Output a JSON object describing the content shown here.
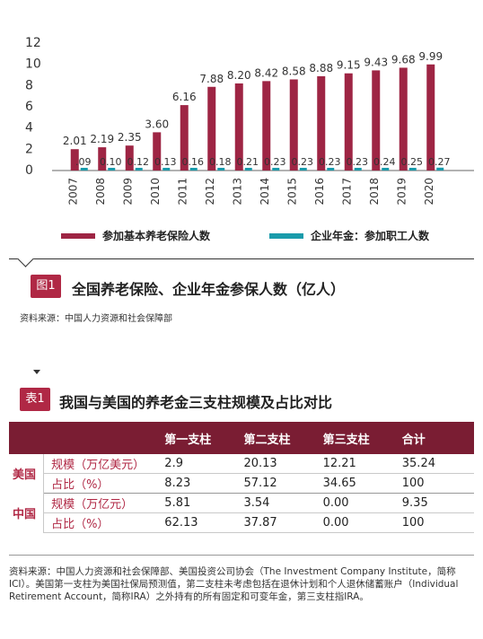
{
  "chart_data": {
    "type": "bar",
    "categories": [
      "2007",
      "2008",
      "2009",
      "2010",
      "2011",
      "2012",
      "2013",
      "2014",
      "2015",
      "2016",
      "2017",
      "2018",
      "2019",
      "2020"
    ],
    "series": [
      {
        "name": "参加基本养老保险人数",
        "values": [
          2.01,
          2.19,
          2.35,
          3.6,
          6.16,
          7.88,
          8.2,
          8.42,
          8.58,
          8.88,
          9.15,
          9.43,
          9.68,
          9.99
        ],
        "labels": [
          "2.01",
          "2.19",
          "2.35",
          "3.60",
          "6.16",
          "7.88",
          "8.20",
          "8.42",
          "8.58",
          "8.88",
          "9.15",
          "9.43",
          "9.68",
          "9.99"
        ],
        "color": "#9e2544"
      },
      {
        "name": "企业年金：参加职工人数",
        "values": [
          0.09,
          0.1,
          0.12,
          0.13,
          0.16,
          0.18,
          0.21,
          0.23,
          0.23,
          0.23,
          0.23,
          0.24,
          0.25,
          0.27
        ],
        "labels": [
          ".09",
          "0.10",
          "0.12",
          "0.13",
          "0.16",
          "0.18",
          "0.21",
          "0.23",
          "0.23",
          "0.23",
          "0.23",
          "0.24",
          "0.25",
          "0.27"
        ],
        "color": "#1a9bab"
      }
    ],
    "yticks": [
      "0",
      "2",
      "4",
      "6",
      "8",
      "10",
      "12"
    ],
    "ylim": [
      0,
      12
    ],
    "legend_placement": "bottom"
  },
  "figure1": {
    "badge": "图1",
    "title": "全国养老保险、企业年金参保人数（亿人）",
    "source": "资料来源：中国人力资源和社会保障部"
  },
  "table1": {
    "badge": "表1",
    "title": "我国与美国的养老金三支柱规模及占比对比",
    "headers": [
      "第一支柱",
      "第二支柱",
      "第三支柱",
      "合计"
    ],
    "rows": [
      {
        "country": "美国",
        "metric": "规模（万亿美元）",
        "values": [
          "2.9",
          "20.13",
          "12.21",
          "35.24"
        ]
      },
      {
        "country": "",
        "metric": "占比（%）",
        "values": [
          "8.23",
          "57.12",
          "34.65",
          "100"
        ]
      },
      {
        "country": "中国",
        "metric": "规模（万亿元）",
        "values": [
          "5.81",
          "3.54",
          "0.00",
          "9.35"
        ]
      },
      {
        "country": "",
        "metric": "占比（%）",
        "values": [
          "62.13",
          "37.87",
          "0.00",
          "100"
        ]
      }
    ],
    "note": "资料来源：中国人力资源和社会保障部、美国投资公司协会（The Investment Company Institute，简称ICI）。美国第一支柱为美国社保局预测值，第二支柱未考虑包括在退休计划和个人退休储蓄账户（Individual Retirement Account，简称IRA）之外持有的所有固定和可变年金，第三支柱指IRA。"
  },
  "colors": {
    "accent": "#b02845",
    "header_bg": "#7a1d33",
    "series1": "#9e2544",
    "series2": "#1a9bab"
  }
}
